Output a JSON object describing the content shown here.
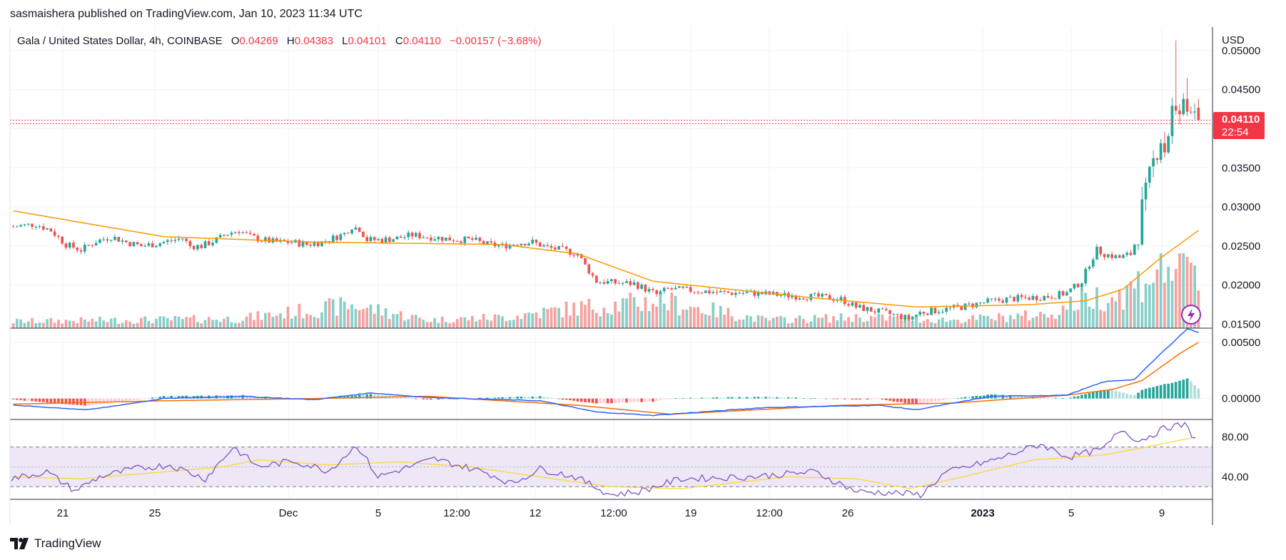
{
  "publisher_line": "sasmaishera published on TradingView.com, Jan 10, 2023 11:34 UTC",
  "legend": {
    "symbol": "Gala / United States Dollar, 4h, COINBASE",
    "open_label": "O",
    "open": "0.04269",
    "high_label": "H",
    "high": "0.04383",
    "low_label": "L",
    "low": "0.04101",
    "close_label": "C",
    "close": "0.04110",
    "change": "−0.00157 (−3.68%)"
  },
  "currency_label": "USD",
  "last_price_badge": {
    "price": "0.04110",
    "countdown": "22:54",
    "color": "#f23645"
  },
  "footer": {
    "brand": "TradingView"
  },
  "colors": {
    "up": "#26a69a",
    "down": "#ef5350",
    "ma": "#ff9800",
    "macd": "#2962ff",
    "signal": "#ff6d00",
    "rsi": "#7e57c2",
    "rsi_ma": "#fdd835",
    "rsi_band": "#ede7f6"
  },
  "chart_data": [
    {
      "type": "candlestick",
      "panel": "price",
      "interval": "4h",
      "x_tick_labels": [
        "21",
        "25",
        "Dec",
        "5",
        "12:00",
        "12",
        "12:00",
        "19",
        "12:00",
        "26",
        "2023",
        "5",
        "9"
      ],
      "y_tick_labels": [
        "0.05000",
        "0.04500",
        "0.03500",
        "0.03000",
        "0.02500",
        "0.02000",
        "0.01500"
      ],
      "ylim": [
        0.0145,
        0.053
      ],
      "close_profile": [
        [
          0,
          0.0275
        ],
        [
          6,
          0.0278
        ],
        [
          10,
          0.027
        ],
        [
          14,
          0.0252
        ],
        [
          18,
          0.0245
        ],
        [
          22,
          0.0256
        ],
        [
          26,
          0.0262
        ],
        [
          30,
          0.0255
        ],
        [
          34,
          0.025
        ],
        [
          38,
          0.0253
        ],
        [
          42,
          0.0257
        ],
        [
          45,
          0.026
        ],
        [
          47,
          0.025
        ],
        [
          50,
          0.025
        ],
        [
          54,
          0.0258
        ],
        [
          57,
          0.0266
        ],
        [
          60,
          0.027
        ],
        [
          63,
          0.0262
        ],
        [
          66,
          0.0258
        ],
        [
          70,
          0.0255
        ],
        [
          74,
          0.0255
        ],
        [
          78,
          0.0252
        ],
        [
          82,
          0.0255
        ],
        [
          86,
          0.0262
        ],
        [
          88,
          0.0266
        ],
        [
          90,
          0.0275
        ],
        [
          92,
          0.0272
        ],
        [
          94,
          0.0258
        ],
        [
          98,
          0.0258
        ],
        [
          102,
          0.026
        ],
        [
          106,
          0.0264
        ],
        [
          110,
          0.0262
        ],
        [
          114,
          0.026
        ],
        [
          118,
          0.0258
        ],
        [
          122,
          0.0258
        ],
        [
          126,
          0.0252
        ],
        [
          130,
          0.025
        ],
        [
          134,
          0.0254
        ],
        [
          138,
          0.0255
        ],
        [
          142,
          0.0248
        ],
        [
          146,
          0.0245
        ],
        [
          150,
          0.024
        ],
        [
          152,
          0.0225
        ],
        [
          155,
          0.0205
        ],
        [
          160,
          0.0203
        ],
        [
          165,
          0.0202
        ],
        [
          168,
          0.0195
        ],
        [
          171,
          0.0188
        ],
        [
          174,
          0.0195
        ],
        [
          178,
          0.0194
        ],
        [
          184,
          0.0192
        ],
        [
          190,
          0.019
        ],
        [
          196,
          0.019
        ],
        [
          202,
          0.0188
        ],
        [
          208,
          0.0186
        ],
        [
          214,
          0.0185
        ],
        [
          220,
          0.0182
        ],
        [
          224,
          0.0172
        ],
        [
          228,
          0.0168
        ],
        [
          234,
          0.0162
        ],
        [
          238,
          0.0157
        ],
        [
          241,
          0.0165
        ],
        [
          246,
          0.0168
        ],
        [
          252,
          0.0172
        ],
        [
          258,
          0.0178
        ],
        [
          264,
          0.0182
        ],
        [
          270,
          0.0184
        ],
        [
          276,
          0.0186
        ],
        [
          280,
          0.019
        ],
        [
          284,
          0.0205
        ],
        [
          286,
          0.0228
        ],
        [
          288,
          0.0245
        ],
        [
          290,
          0.024
        ],
        [
          294,
          0.0235
        ],
        [
          297,
          0.024
        ],
        [
          299,
          0.0265
        ],
        [
          300,
          0.03
        ],
        [
          301,
          0.0318
        ],
        [
          302,
          0.034
        ],
        [
          303,
          0.0358
        ],
        [
          304,
          0.0372
        ],
        [
          305,
          0.0388
        ],
        [
          306,
          0.0372
        ],
        [
          307,
          0.0395
        ],
        [
          308,
          0.0425
        ],
        [
          309,
          0.0415
        ],
        [
          310,
          0.042
        ],
        [
          311,
          0.043
        ],
        [
          312,
          0.0422
        ],
        [
          313,
          0.0432
        ],
        [
          314,
          0.0426
        ],
        [
          315,
          0.0411
        ]
      ],
      "ma_profile": [
        [
          0,
          0.0295
        ],
        [
          40,
          0.0262
        ],
        [
          80,
          0.0255
        ],
        [
          130,
          0.0252
        ],
        [
          150,
          0.024
        ],
        [
          170,
          0.0205
        ],
        [
          210,
          0.0185
        ],
        [
          240,
          0.0172
        ],
        [
          270,
          0.0175
        ],
        [
          285,
          0.018
        ],
        [
          295,
          0.0195
        ],
        [
          305,
          0.0235
        ],
        [
          315,
          0.027
        ]
      ],
      "volume_profile": [
        [
          0,
          0.1
        ],
        [
          60,
          0.14
        ],
        [
          90,
          0.34
        ],
        [
          110,
          0.12
        ],
        [
          130,
          0.16
        ],
        [
          150,
          0.3
        ],
        [
          172,
          0.4
        ],
        [
          200,
          0.12
        ],
        [
          225,
          0.16
        ],
        [
          250,
          0.12
        ],
        [
          275,
          0.2
        ],
        [
          285,
          0.44
        ],
        [
          295,
          0.5
        ],
        [
          305,
          0.9
        ],
        [
          312,
          0.95
        ],
        [
          315,
          0.6
        ]
      ]
    },
    {
      "type": "line",
      "panel": "macd",
      "y_tick_labels": [
        "0.00500",
        "0.00000"
      ],
      "ylim": [
        -0.0018,
        0.0062
      ],
      "macd_profile": [
        [
          0,
          -0.0006
        ],
        [
          20,
          -0.001
        ],
        [
          40,
          0.0
        ],
        [
          60,
          0.0002
        ],
        [
          80,
          -0.0001
        ],
        [
          95,
          0.0005
        ],
        [
          110,
          0.0001
        ],
        [
          140,
          -0.0002
        ],
        [
          155,
          -0.0012
        ],
        [
          170,
          -0.0015
        ],
        [
          200,
          -0.0008
        ],
        [
          230,
          -0.0006
        ],
        [
          240,
          -0.001
        ],
        [
          260,
          0.0002
        ],
        [
          280,
          0.0003
        ],
        [
          290,
          0.0015
        ],
        [
          298,
          0.0017
        ],
        [
          305,
          0.004
        ],
        [
          312,
          0.0062
        ],
        [
          315,
          0.0059
        ]
      ],
      "signal_profile": [
        [
          0,
          -0.0005
        ],
        [
          40,
          -0.0002
        ],
        [
          80,
          0.0
        ],
        [
          110,
          0.0002
        ],
        [
          150,
          -0.0006
        ],
        [
          175,
          -0.0014
        ],
        [
          220,
          -0.0006
        ],
        [
          250,
          -0.0004
        ],
        [
          280,
          0.0003
        ],
        [
          292,
          0.0008
        ],
        [
          300,
          0.0016
        ],
        [
          310,
          0.004
        ],
        [
          315,
          0.005
        ]
      ]
    },
    {
      "type": "line",
      "panel": "rsi",
      "y_tick_labels": [
        "80.00",
        "40.00"
      ],
      "ylim": [
        18,
        97
      ],
      "bands": [
        70,
        50,
        30
      ],
      "rsi_profile": [
        [
          0,
          38
        ],
        [
          10,
          45
        ],
        [
          18,
          26
        ],
        [
          25,
          40
        ],
        [
          35,
          48
        ],
        [
          45,
          52
        ],
        [
          55,
          38
        ],
        [
          63,
          70
        ],
        [
          70,
          50
        ],
        [
          80,
          56
        ],
        [
          90,
          46
        ],
        [
          98,
          72
        ],
        [
          104,
          40
        ],
        [
          120,
          58
        ],
        [
          135,
          44
        ],
        [
          142,
          33
        ],
        [
          150,
          48
        ],
        [
          160,
          40
        ],
        [
          170,
          22
        ],
        [
          178,
          25
        ],
        [
          190,
          38
        ],
        [
          210,
          40
        ],
        [
          228,
          45
        ],
        [
          240,
          25
        ],
        [
          250,
          24
        ],
        [
          258,
          22
        ],
        [
          265,
          44
        ],
        [
          280,
          58
        ],
        [
          292,
          73
        ],
        [
          300,
          60
        ],
        [
          310,
          68
        ],
        [
          315,
          88
        ],
        [
          320,
          76
        ],
        [
          328,
          90
        ],
        [
          333,
          92
        ],
        [
          336,
          78
        ]
      ],
      "rsi_ma_profile": [
        [
          0,
          40
        ],
        [
          20,
          38
        ],
        [
          40,
          44
        ],
        [
          60,
          50
        ],
        [
          70,
          57
        ],
        [
          90,
          52
        ],
        [
          110,
          55
        ],
        [
          130,
          50
        ],
        [
          150,
          40
        ],
        [
          170,
          30
        ],
        [
          190,
          28
        ],
        [
          220,
          40
        ],
        [
          240,
          38
        ],
        [
          255,
          28
        ],
        [
          270,
          40
        ],
        [
          290,
          57
        ],
        [
          310,
          62
        ],
        [
          325,
          72
        ],
        [
          336,
          80
        ]
      ]
    }
  ]
}
